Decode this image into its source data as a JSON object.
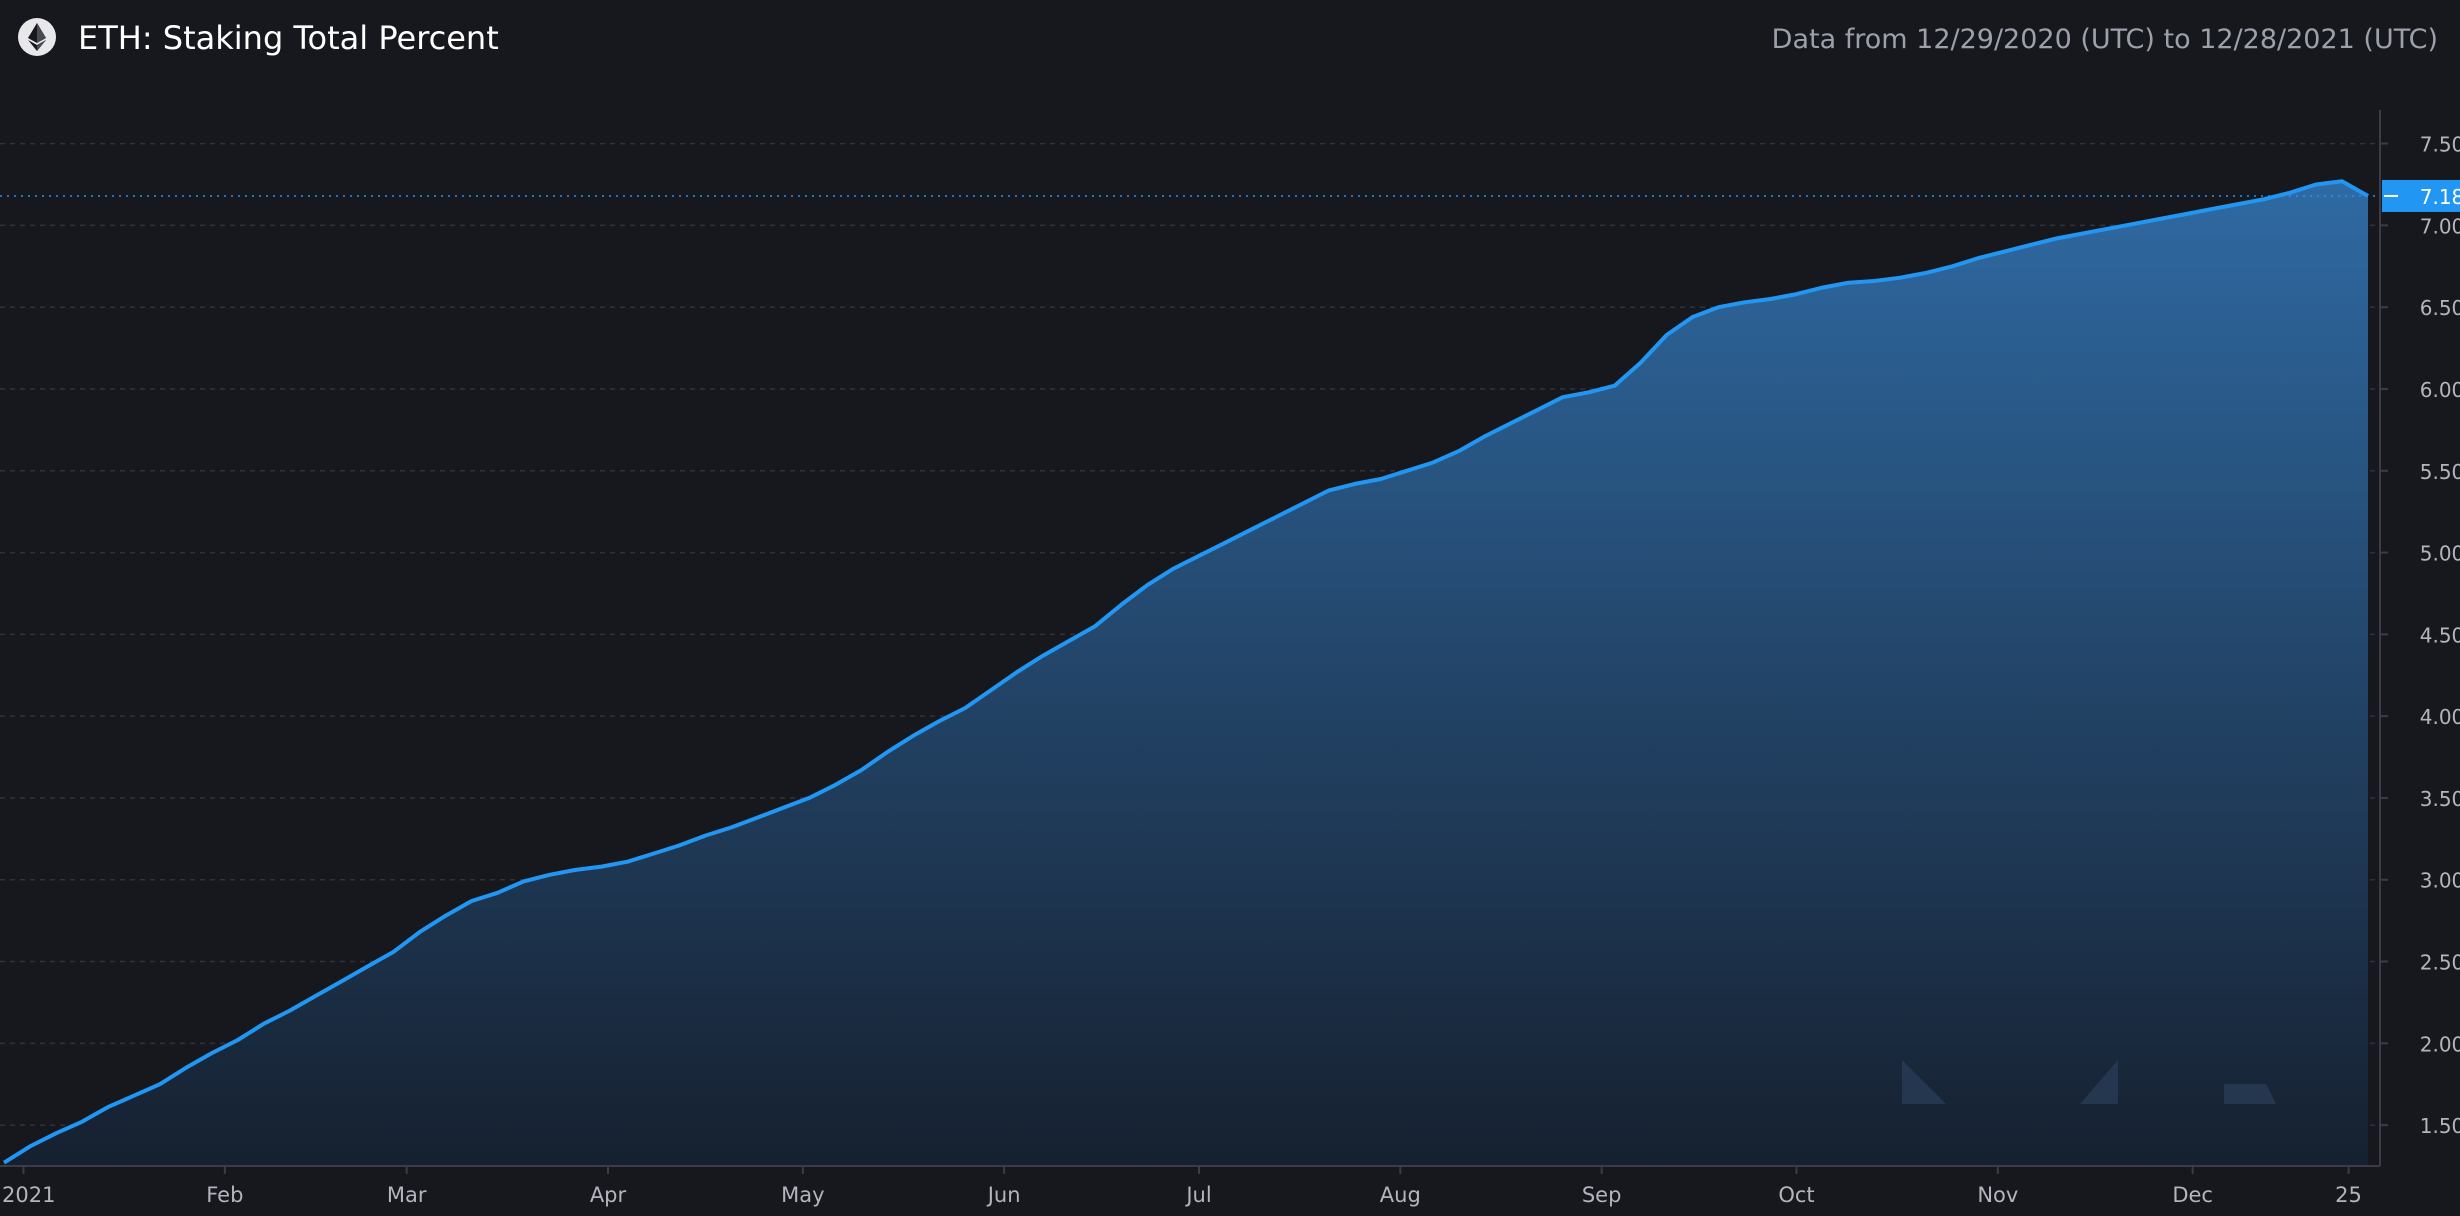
{
  "header": {
    "title": "ETH: Staking Total Percent",
    "date_range": "Data from 12/29/2020 (UTC) to 12/28/2021 (UTC)",
    "logo_icon": "ethereum-icon"
  },
  "colors": {
    "background": "#17181d",
    "line": "#2196f3",
    "fill_top": "#2f6aa3",
    "fill_bottom": "#16202f",
    "grid": "#2f323c",
    "axis_text": "#b2b5be",
    "last_value_bg": "#2196f3"
  },
  "chart_data": {
    "type": "area",
    "title": "ETH: Staking Total Percent",
    "xlabel": "",
    "ylabel": "",
    "ylim": [
      1.25,
      7.95
    ],
    "grid": true,
    "yticks": [
      1.5,
      2.0,
      2.5,
      3.0,
      3.5,
      4.0,
      4.5,
      5.0,
      5.5,
      6.0,
      6.5,
      7.0,
      7.5
    ],
    "ytick_labels": [
      "1.50",
      "2.00",
      "2.50",
      "3.00",
      "3.50",
      "4.00",
      "4.50",
      "5.00",
      "5.50",
      "6.00",
      "6.50",
      "7.00",
      "7.50"
    ],
    "xticks": [
      {
        "label": "2021",
        "date": "2021-01-01"
      },
      {
        "label": "Feb",
        "date": "2021-02-01"
      },
      {
        "label": "Mar",
        "date": "2021-03-01"
      },
      {
        "label": "Apr",
        "date": "2021-04-01"
      },
      {
        "label": "May",
        "date": "2021-05-01"
      },
      {
        "label": "Jun",
        "date": "2021-06-01"
      },
      {
        "label": "Jul",
        "date": "2021-07-01"
      },
      {
        "label": "Aug",
        "date": "2021-08-01"
      },
      {
        "label": "Sep",
        "date": "2021-09-01"
      },
      {
        "label": "Oct",
        "date": "2021-10-01"
      },
      {
        "label": "Nov",
        "date": "2021-11-01"
      },
      {
        "label": "Dec",
        "date": "2021-12-01"
      },
      {
        "label": "25",
        "date": "2021-12-25"
      }
    ],
    "last_value": 7.18,
    "last_value_label": "7.18",
    "x": [
      "2020-12-29",
      "2021-01-02",
      "2021-01-06",
      "2021-01-10",
      "2021-01-14",
      "2021-01-18",
      "2021-01-22",
      "2021-01-26",
      "2021-01-30",
      "2021-02-03",
      "2021-02-07",
      "2021-02-11",
      "2021-02-15",
      "2021-02-19",
      "2021-02-23",
      "2021-02-27",
      "2021-03-03",
      "2021-03-07",
      "2021-03-11",
      "2021-03-15",
      "2021-03-19",
      "2021-03-23",
      "2021-03-27",
      "2021-03-31",
      "2021-04-04",
      "2021-04-08",
      "2021-04-12",
      "2021-04-16",
      "2021-04-20",
      "2021-04-24",
      "2021-04-28",
      "2021-05-02",
      "2021-05-06",
      "2021-05-10",
      "2021-05-14",
      "2021-05-18",
      "2021-05-22",
      "2021-05-26",
      "2021-05-30",
      "2021-06-03",
      "2021-06-07",
      "2021-06-11",
      "2021-06-15",
      "2021-06-19",
      "2021-06-23",
      "2021-06-27",
      "2021-07-01",
      "2021-07-05",
      "2021-07-09",
      "2021-07-13",
      "2021-07-17",
      "2021-07-21",
      "2021-07-25",
      "2021-07-29",
      "2021-08-02",
      "2021-08-06",
      "2021-08-10",
      "2021-08-14",
      "2021-08-18",
      "2021-08-22",
      "2021-08-26",
      "2021-08-30",
      "2021-09-03",
      "2021-09-07",
      "2021-09-11",
      "2021-09-15",
      "2021-09-19",
      "2021-09-23",
      "2021-09-27",
      "2021-10-01",
      "2021-10-05",
      "2021-10-09",
      "2021-10-13",
      "2021-10-17",
      "2021-10-21",
      "2021-10-25",
      "2021-10-29",
      "2021-11-02",
      "2021-11-06",
      "2021-11-10",
      "2021-11-14",
      "2021-11-18",
      "2021-11-22",
      "2021-11-26",
      "2021-11-30",
      "2021-12-04",
      "2021-12-08",
      "2021-12-12",
      "2021-12-16",
      "2021-12-20",
      "2021-12-24",
      "2021-12-28"
    ],
    "series": [
      {
        "values": [
          1.27,
          1.37,
          1.45,
          1.52,
          1.61,
          1.68,
          1.75,
          1.85,
          1.94,
          2.02,
          2.12,
          2.2,
          2.29,
          2.38,
          2.47,
          2.56,
          2.68,
          2.78,
          2.87,
          2.92,
          2.99,
          3.03,
          3.06,
          3.08,
          3.11,
          3.16,
          3.21,
          3.27,
          3.32,
          3.38,
          3.44,
          3.5,
          3.58,
          3.67,
          3.78,
          3.88,
          3.97,
          4.05,
          4.16,
          4.27,
          4.37,
          4.46,
          4.55,
          4.68,
          4.8,
          4.9,
          4.98,
          5.06,
          5.14,
          5.22,
          5.3,
          5.38,
          5.42,
          5.45,
          5.5,
          5.55,
          5.62,
          5.71,
          5.79,
          5.87,
          5.95,
          5.98,
          6.02,
          6.16,
          6.33,
          6.44,
          6.5,
          6.53,
          6.55,
          6.58,
          6.62,
          6.65,
          6.66,
          6.68,
          6.71,
          6.75,
          6.8,
          6.84,
          6.88,
          6.92,
          6.95,
          6.98,
          7.01,
          7.04,
          7.07,
          7.1,
          7.13,
          7.16,
          7.2,
          7.25,
          7.27,
          7.18
        ]
      }
    ]
  }
}
